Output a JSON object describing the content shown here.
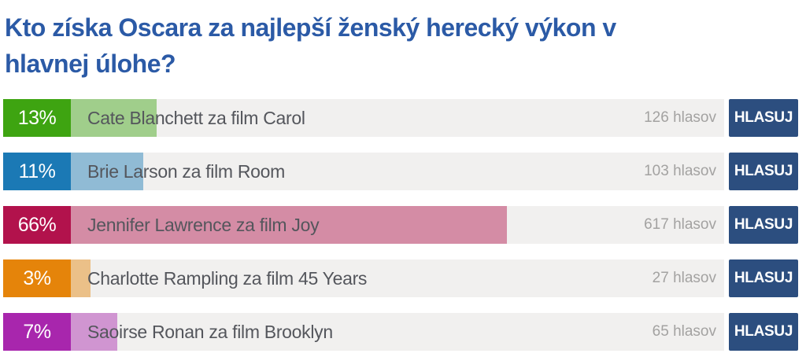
{
  "poll": {
    "question_line1": "Kto získa Oscara za najlepší ženský herecký výkon v",
    "question_line2": "hlavnej úlohe?",
    "vote_button_label": "HLASUJ",
    "options": [
      {
        "percent": "13%",
        "percent_value": 13,
        "label": "Cate Blanchett za film Carol",
        "votes": "126 hlasov",
        "color": "#3ea411"
      },
      {
        "percent": "11%",
        "percent_value": 11,
        "label": "Brie Larson za film Room",
        "votes": "103 hlasov",
        "color": "#1b79b5"
      },
      {
        "percent": "66%",
        "percent_value": 66,
        "label": "Jennifer Lawrence za film Joy",
        "votes": "617 hlasov",
        "color": "#b2124c"
      },
      {
        "percent": "3%",
        "percent_value": 3,
        "label": "Charlotte Rampling za film 45 Years",
        "votes": "27 hlasov",
        "color": "#e5840a"
      },
      {
        "percent": "7%",
        "percent_value": 7,
        "label": "Saoirse Ronan za film Brooklyn",
        "votes": "65 hlasov",
        "color": "#a826ad"
      }
    ]
  },
  "colors": {
    "title": "#2b5aa6",
    "row_background": "#f1f0ef",
    "option_text": "#54565c",
    "votes_text": "#a3a2a1",
    "button_background": "#2c4e7f",
    "button_text": "#ffffff"
  }
}
